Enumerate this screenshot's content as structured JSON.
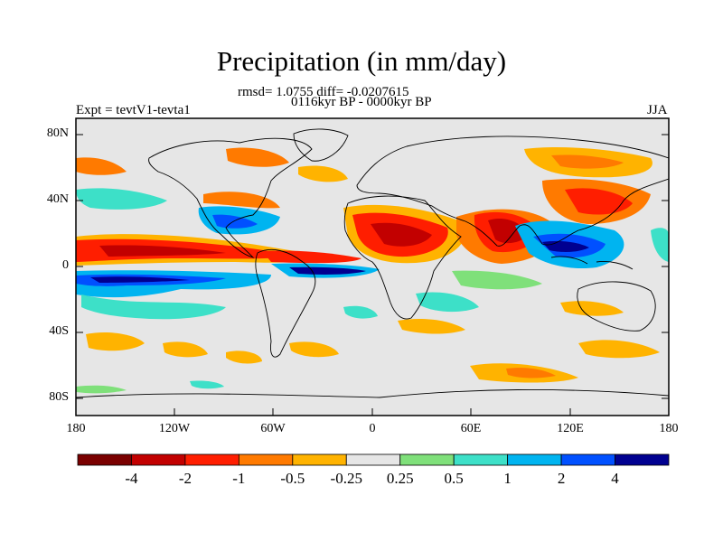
{
  "title": "Precipitation (in mm/day)",
  "stats_line": "rmsd= 1.0755 diff= -0.0207615",
  "period": "0116kyr BP - 0000kyr BP",
  "experiment": "Expt = tevtV1-tevta1",
  "season": "JJA",
  "lat_labels": [
    "80N",
    "40N",
    "0",
    "40S",
    "80S"
  ],
  "lon_labels": [
    "180",
    "120W",
    "60W",
    "0",
    "60E",
    "120E",
    "180"
  ],
  "colorbar": {
    "colors": [
      "#7a0000",
      "#c20000",
      "#ff1e00",
      "#ff7a00",
      "#ffb300",
      "#e6e6e6",
      "#7fe07a",
      "#3de0c8",
      "#00b4f0",
      "#0050ff",
      "#000090"
    ],
    "labels": [
      "-4",
      "-2",
      "-1",
      "-0.5",
      "-0.25",
      "0.25",
      "0.5",
      "1",
      "2",
      "4"
    ]
  }
}
